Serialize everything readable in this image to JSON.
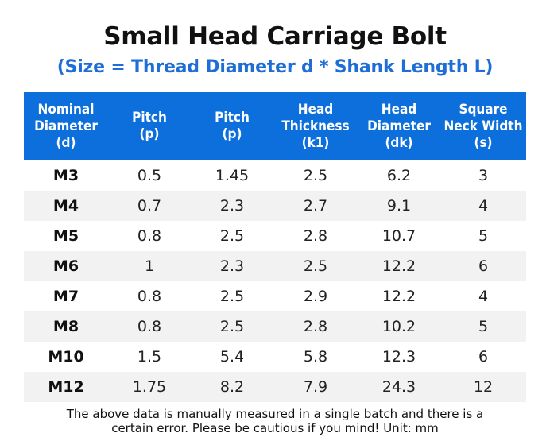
{
  "title": "Small Head Carriage Bolt",
  "subtitle": "(Size = Thread Diameter d * Shank Length L)",
  "headers": [
    [
      "Nominal",
      "Diameter",
      "(d)"
    ],
    [
      "Pitch",
      "(p)"
    ],
    [
      "Pitch",
      "(p)"
    ],
    [
      "Head",
      "Thickness",
      "(k1)"
    ],
    [
      "Head",
      "Diameter",
      "(dk)"
    ],
    [
      "Square",
      "Neck Width",
      "(s)"
    ]
  ],
  "rows": [
    [
      "M3",
      "0.5",
      "1.45",
      "2.5",
      "6.2",
      "3"
    ],
    [
      "M4",
      "0.7",
      "2.3",
      "2.7",
      "9.1",
      "4"
    ],
    [
      "M5",
      "0.8",
      "2.5",
      "2.8",
      "10.7",
      "5"
    ],
    [
      "M6",
      "1",
      "2.3",
      "2.5",
      "12.2",
      "6"
    ],
    [
      "M7",
      "0.8",
      "2.5",
      "2.9",
      "12.2",
      "4"
    ],
    [
      "M8",
      "0.8",
      "2.5",
      "2.8",
      "10.2",
      "5"
    ],
    [
      "M10",
      "1.5",
      "5.4",
      "5.8",
      "12.3",
      "6"
    ],
    [
      "M12",
      "1.75",
      "8.2",
      "7.9",
      "24.3",
      "12"
    ]
  ],
  "note": [
    "The above data is manually measured in a single batch and there is a",
    "certain error. Please be cautious if you mind! Unit: mm"
  ],
  "colors": {
    "header_bg": "#0d6fdc",
    "subtitle": "#1f6ed6",
    "alt_row": "#f2f2f2"
  }
}
